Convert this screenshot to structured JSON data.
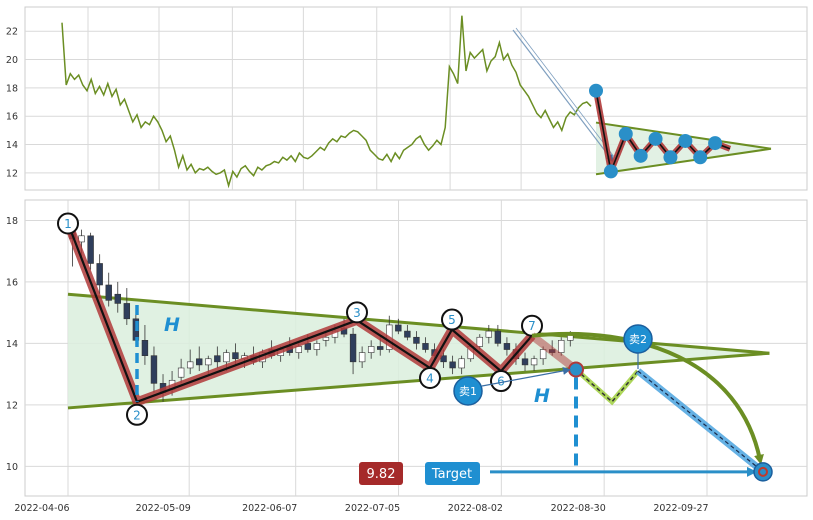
{
  "chart_data": [
    {
      "type": "line",
      "panel": "overview",
      "y_ticks": [
        "12",
        "14",
        "16",
        "18",
        "20",
        "22"
      ],
      "ylim": [
        11,
        23.5
      ],
      "grid": true,
      "line_color": "#6b8e23",
      "pattern_color": "#b03a3a",
      "point_color": "#2a8fc8",
      "series": [
        {
          "values": [
            22.6,
            18.2,
            19.0,
            18.6,
            18.9,
            18.2,
            17.8,
            18.6,
            17.6,
            18.1,
            17.5,
            18.3,
            17.4,
            17.9,
            16.8,
            17.2,
            16.4,
            15.6,
            16.1,
            15.2,
            15.6,
            15.4,
            16.0,
            15.6,
            15.0,
            14.2,
            14.6,
            13.6,
            12.4,
            13.2,
            12.2,
            12.6,
            12.0,
            12.3,
            12.2,
            12.4,
            12.1,
            11.9,
            12.0,
            12.2,
            11.1,
            12.1,
            11.7,
            12.3,
            12.5,
            12.1,
            11.8,
            12.4,
            12.2,
            12.5,
            12.6,
            12.8,
            12.7,
            13.1,
            12.9,
            13.2,
            12.8,
            13.4,
            13.1,
            13.0,
            13.2,
            13.5,
            13.8,
            13.6,
            14.1,
            14.4,
            14.2,
            14.6,
            14.5,
            14.8,
            15.0,
            14.9,
            14.6,
            14.3,
            13.6,
            13.3,
            13.0,
            12.9,
            13.3,
            12.8,
            13.4,
            13.0,
            13.6,
            13.8,
            14.0,
            14.4,
            14.6,
            14.0,
            13.6,
            13.9,
            14.3,
            14.0,
            15.2,
            19.5,
            19.0,
            18.3,
            23.1,
            19.2,
            20.5,
            20.1,
            20.4,
            20.7,
            19.2,
            19.9,
            20.2,
            21.2,
            20.0,
            20.4,
            19.6,
            19.1,
            18.2,
            17.8,
            17.4,
            16.8,
            16.2,
            15.9,
            16.4,
            15.8,
            15.2,
            15.6,
            15.0,
            15.9,
            16.3,
            16.1,
            16.6,
            16.9,
            17.0,
            16.7
          ],
          "x_start_date": "2022-04-06",
          "x_end_date": "2022-08-22"
        }
      ],
      "pattern_points": [
        17.8,
        12.1,
        14.75,
        13.2,
        14.4,
        13.1,
        14.25,
        13.1,
        14.1,
        13.7
      ],
      "triangle": {
        "upper": [
          15.55,
          13.7
        ],
        "lower": [
          11.9,
          13.7
        ]
      }
    },
    {
      "type": "line",
      "panel": "detail",
      "x_ticks": [
        "2022-04-06",
        "2022-05-09",
        "2022-06-07",
        "2022-07-05",
        "2022-08-02",
        "2022-08-30",
        "2022-09-27"
      ],
      "y_ticks": [
        "10",
        "12",
        "14",
        "16",
        "18"
      ],
      "ylim": [
        9.1,
        18.6
      ],
      "grid": true,
      "candles": [
        [
          17.6,
          18.1,
          16.5,
          17.4
        ],
        [
          17.3,
          17.7,
          16.8,
          17.5
        ],
        [
          17.5,
          17.6,
          16.4,
          16.6
        ],
        [
          16.6,
          16.9,
          15.6,
          15.9
        ],
        [
          15.9,
          16.3,
          15.2,
          15.4
        ],
        [
          15.6,
          16.0,
          15.0,
          15.3
        ],
        [
          15.3,
          15.8,
          14.6,
          14.8
        ],
        [
          14.8,
          15.2,
          13.9,
          14.1
        ],
        [
          14.1,
          14.6,
          13.3,
          13.6
        ],
        [
          13.6,
          13.9,
          12.4,
          12.7
        ],
        [
          12.7,
          13.0,
          12.1,
          12.4
        ],
        [
          12.5,
          13.1,
          12.3,
          12.8
        ],
        [
          12.9,
          13.5,
          12.7,
          13.2
        ],
        [
          13.2,
          13.8,
          13.0,
          13.4
        ],
        [
          13.5,
          13.9,
          13.1,
          13.3
        ],
        [
          13.3,
          13.6,
          13.0,
          13.5
        ],
        [
          13.6,
          13.9,
          13.2,
          13.4
        ],
        [
          13.4,
          13.8,
          13.1,
          13.7
        ],
        [
          13.7,
          14.0,
          13.3,
          13.5
        ],
        [
          13.5,
          13.7,
          13.2,
          13.6
        ],
        [
          13.6,
          13.9,
          13.3,
          13.4
        ],
        [
          13.4,
          13.8,
          13.2,
          13.7
        ],
        [
          13.8,
          14.1,
          13.5,
          13.6
        ],
        [
          13.6,
          13.9,
          13.4,
          13.8
        ],
        [
          13.9,
          14.2,
          13.6,
          13.7
        ],
        [
          13.7,
          14.0,
          13.5,
          13.9
        ],
        [
          14.0,
          14.3,
          13.7,
          13.8
        ],
        [
          13.8,
          14.1,
          13.6,
          14.0
        ],
        [
          14.1,
          14.4,
          13.9,
          14.2
        ],
        [
          14.2,
          14.6,
          14.0,
          14.4
        ],
        [
          14.5,
          14.8,
          14.2,
          14.3
        ],
        [
          14.3,
          14.5,
          13.0,
          13.4
        ],
        [
          13.4,
          13.9,
          13.2,
          13.7
        ],
        [
          13.7,
          14.1,
          13.5,
          13.9
        ],
        [
          13.9,
          14.2,
          13.6,
          13.8
        ],
        [
          13.8,
          14.9,
          13.7,
          14.6
        ],
        [
          14.6,
          14.8,
          14.3,
          14.4
        ],
        [
          14.4,
          14.6,
          14.1,
          14.2
        ],
        [
          14.2,
          14.4,
          13.8,
          14.0
        ],
        [
          14.0,
          14.2,
          13.7,
          13.8
        ],
        [
          13.8,
          14.0,
          13.4,
          13.6
        ],
        [
          13.6,
          13.8,
          13.2,
          13.4
        ],
        [
          13.4,
          13.6,
          13.0,
          13.2
        ],
        [
          13.2,
          13.6,
          13.0,
          13.5
        ],
        [
          13.5,
          14.0,
          13.4,
          13.9
        ],
        [
          13.9,
          14.3,
          13.8,
          14.2
        ],
        [
          14.2,
          14.6,
          14.0,
          14.4
        ],
        [
          14.4,
          14.6,
          13.9,
          14.0
        ],
        [
          14.0,
          14.2,
          13.6,
          13.8
        ],
        [
          13.8,
          14.0,
          13.3,
          13.5
        ],
        [
          13.5,
          13.7,
          13.1,
          13.3
        ],
        [
          13.3,
          13.6,
          13.1,
          13.5
        ],
        [
          13.5,
          13.9,
          13.3,
          13.8
        ],
        [
          13.8,
          14.1,
          13.6,
          13.7
        ],
        [
          13.7,
          14.2,
          13.6,
          14.1
        ],
        [
          14.1,
          14.4,
          13.9,
          14.3
        ]
      ],
      "candle_x_start": "2022-04-06",
      "candle_x_end": "2022-08-22",
      "pattern": [
        {
          "label": "1",
          "value": 17.9
        },
        {
          "label": "2",
          "value": 12.1
        },
        {
          "label": "3",
          "value": 14.75
        },
        {
          "label": "4",
          "value": 13.2
        },
        {
          "label": "5",
          "value": 14.45
        },
        {
          "label": "6",
          "value": 13.1
        },
        {
          "label": "7",
          "value": 14.25
        }
      ],
      "triangle": {
        "upper": [
          15.6,
          13.68
        ],
        "lower": [
          11.9,
          13.68
        ],
        "apex_date": "2022-10-14"
      },
      "projection_values": [
        13.15,
        12.1,
        13.1
      ],
      "target_value": 9.82,
      "annotations": {
        "height_label": "H",
        "sell1": "卖1",
        "sell2": "卖2",
        "target_price": "9.82",
        "target_label": "Target"
      },
      "colors": {
        "line": "#6b8e23",
        "pattern": "#b03a3a",
        "accent": "#2a8fc8",
        "price_box": "#a52a2a",
        "target_box": "#1f8fd1",
        "fill": "#dbeedd"
      }
    }
  ]
}
